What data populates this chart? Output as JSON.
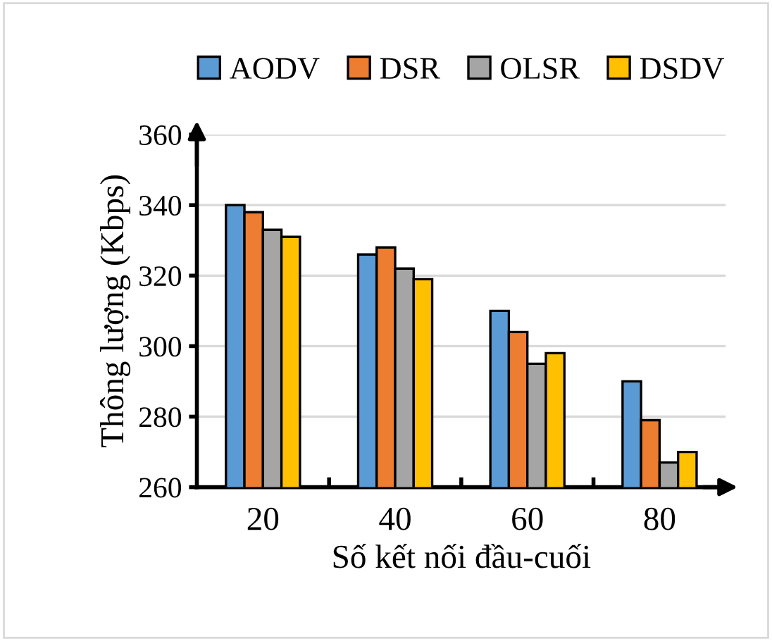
{
  "chart_data": {
    "type": "bar",
    "xlabel": "Số kết nối đầu-cuối",
    "ylabel": "Thông lượng (Kbps)",
    "categories": [
      "20",
      "40",
      "60",
      "80"
    ],
    "series": [
      {
        "name": "AODV",
        "color": "#5b9bd5",
        "values": [
          340,
          326,
          310,
          290
        ]
      },
      {
        "name": "DSR",
        "color": "#ed7d31",
        "values": [
          338,
          328,
          304,
          279
        ]
      },
      {
        "name": "OLSR",
        "color": "#a5a5a5",
        "values": [
          333,
          322,
          295,
          267
        ]
      },
      {
        "name": "DSDV",
        "color": "#ffc000",
        "values": [
          331,
          319,
          298,
          270
        ]
      }
    ],
    "ylim": [
      260,
      360
    ],
    "yticks": [
      260,
      280,
      300,
      320,
      340,
      360
    ],
    "grid": "y",
    "legend": "top"
  }
}
